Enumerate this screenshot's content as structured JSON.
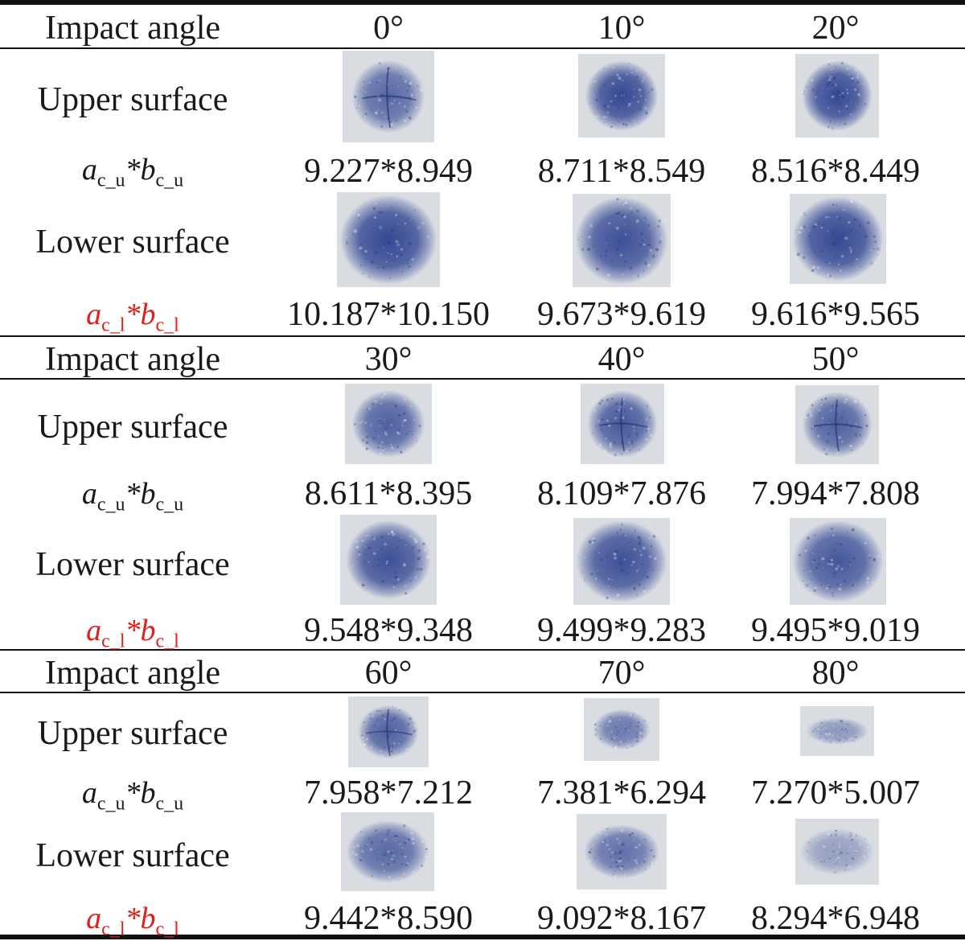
{
  "row_labels": {
    "impact_angle": "Impact angle",
    "upper_surface": "Upper surface",
    "lower_surface": "Lower surface"
  },
  "formula_upper": {
    "a": "a",
    "a_sub": "c_u",
    "star": "*",
    "b": "b",
    "b_sub": "c_u"
  },
  "formula_lower": {
    "a": "a",
    "a_sub": "c_l",
    "star": "*",
    "b": "b",
    "b_sub": "c_l"
  },
  "groups": [
    {
      "angles": [
        "0°",
        "10°",
        "20°"
      ],
      "upper_values": [
        "9.227*8.949",
        "8.711*8.549",
        "8.516*8.449"
      ],
      "lower_values": [
        "10.187*10.150",
        "9.673*9.619",
        "9.616*9.565"
      ]
    },
    {
      "angles": [
        "30°",
        "40°",
        "50°"
      ],
      "upper_values": [
        "8.611*8.395",
        "8.109*7.876",
        "7.994*7.808"
      ],
      "lower_values": [
        "9.548*9.348",
        "9.499*9.283",
        "9.495*9.019"
      ]
    },
    {
      "angles": [
        "60°",
        "70°",
        "80°"
      ],
      "upper_values": [
        "7.958*7.212",
        "7.381*6.294",
        "7.270*5.007"
      ],
      "lower_values": [
        "9.442*8.590",
        "9.092*8.167",
        "8.294*6.948"
      ]
    }
  ],
  "colors": {
    "ink": "#1a1a1a",
    "highlight": "#e0201c",
    "stain": "#2b3f8f",
    "paper": "#d9dde2"
  }
}
